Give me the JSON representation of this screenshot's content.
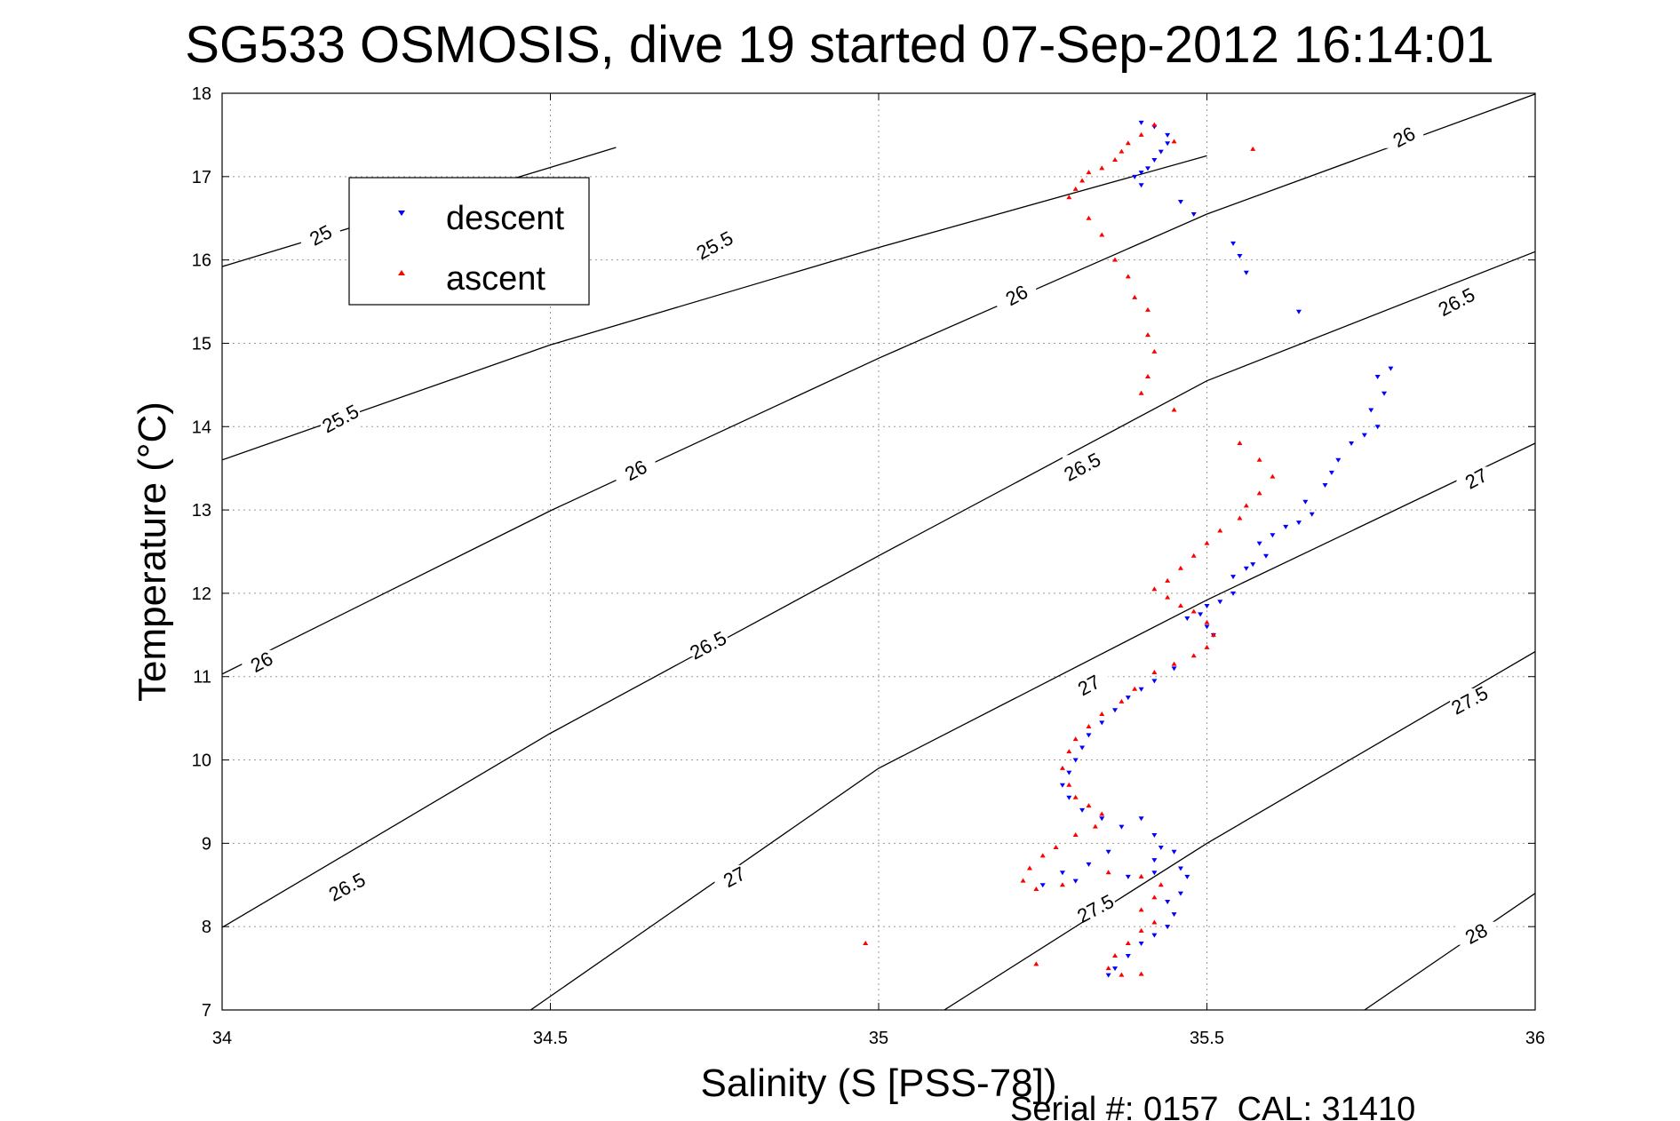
{
  "chart_data": {
    "type": "scatter",
    "title": "SG533 OSMOSIS, dive 19 started 07-Sep-2012 16:14:01",
    "xlabel": "Salinity (S [PSS-78])",
    "ylabel": "Temperature (°C)",
    "xlim": [
      34,
      36
    ],
    "ylim": [
      7,
      18
    ],
    "xticks": [
      "34",
      "34.5",
      "35",
      "35.5",
      "36"
    ],
    "yticks": [
      "7",
      "8",
      "9",
      "10",
      "11",
      "12",
      "13",
      "14",
      "15",
      "16",
      "17",
      "18"
    ],
    "grid": true,
    "legend": {
      "position": "upper-left",
      "entries": [
        "descent",
        "ascent"
      ]
    },
    "footer": "Serial #: 0157  CAL: 31410",
    "colors": {
      "descent": "#0000ff",
      "ascent": "#ff0000",
      "contour": "#000000"
    },
    "contours": [
      {
        "label": "25",
        "points": [
          [
            34.0,
            15.92
          ],
          [
            34.5,
            17.11
          ],
          [
            34.6,
            17.35
          ]
        ],
        "label_at": [
          34.15,
          16.3
        ]
      },
      {
        "label": "25.5",
        "points": [
          [
            34.0,
            13.6
          ],
          [
            34.5,
            14.98
          ],
          [
            35.0,
            16.15
          ],
          [
            35.5,
            17.25
          ],
          [
            35.5,
            17.25
          ]
        ],
        "label_at": [
          34.18,
          14.1
        ],
        "label2": "25.5",
        "label2_at": [
          34.75,
          16.18
        ]
      },
      {
        "label": "26",
        "points": [
          [
            34.0,
            11.03
          ],
          [
            34.5,
            12.99
          ],
          [
            35.0,
            14.82
          ],
          [
            35.5,
            16.55
          ],
          [
            36.0,
            17.99
          ]
        ],
        "label_at": [
          34.06,
          11.18
        ],
        "label2": "26",
        "label2_at": [
          34.63,
          13.48
        ],
        "label3": "26",
        "label3_at": [
          35.21,
          15.58
        ],
        "label4": "26",
        "label4_at": [
          35.8,
          17.48
        ]
      },
      {
        "label": "26.5",
        "points": [
          [
            34.0,
            7.99
          ],
          [
            34.5,
            10.32
          ],
          [
            35.0,
            12.45
          ],
          [
            35.5,
            14.55
          ],
          [
            36.0,
            16.1
          ]
        ],
        "label_at": [
          34.19,
          8.48
        ],
        "label2": "26.5",
        "label2_at": [
          34.74,
          11.38
        ],
        "label3": "26.5",
        "label3_at": [
          35.31,
          13.52
        ],
        "label4": "26.5",
        "label4_at": [
          35.88,
          15.5
        ]
      },
      {
        "label": "27",
        "points": [
          [
            34.47,
            7.0
          ],
          [
            35.0,
            9.9
          ],
          [
            35.5,
            11.92
          ],
          [
            36.0,
            13.8
          ]
        ],
        "label_at": [
          34.78,
          8.6
        ],
        "label2": "27",
        "label2_at": [
          35.32,
          10.9
        ],
        "label3": "27",
        "label3_at": [
          35.91,
          13.38
        ]
      },
      {
        "label": "27.5",
        "points": [
          [
            35.1,
            7.0
          ],
          [
            35.5,
            9.0
          ],
          [
            36.0,
            11.3
          ]
        ],
        "label_at": [
          35.33,
          8.22
        ],
        "label2": "27.5",
        "label2_at": [
          35.9,
          10.72
        ]
      },
      {
        "label": "28",
        "points": [
          [
            35.74,
            7.0
          ],
          [
            36.0,
            8.4
          ]
        ],
        "label_at": [
          35.91,
          7.92
        ]
      }
    ],
    "series": [
      {
        "name": "descent",
        "marker": "triangle-down",
        "points": [
          [
            35.4,
            17.65
          ],
          [
            35.42,
            17.6
          ],
          [
            35.44,
            17.5
          ],
          [
            35.44,
            17.4
          ],
          [
            35.43,
            17.3
          ],
          [
            35.42,
            17.2
          ],
          [
            35.41,
            17.1
          ],
          [
            35.4,
            17.05
          ],
          [
            35.39,
            17.0
          ],
          [
            35.4,
            16.9
          ],
          [
            35.46,
            16.7
          ],
          [
            35.48,
            16.55
          ],
          [
            35.54,
            16.2
          ],
          [
            35.55,
            16.05
          ],
          [
            35.56,
            15.85
          ],
          [
            35.64,
            15.38
          ],
          [
            35.78,
            14.7
          ],
          [
            35.76,
            14.6
          ],
          [
            35.77,
            14.4
          ],
          [
            35.75,
            14.2
          ],
          [
            35.76,
            14.0
          ],
          [
            35.74,
            13.9
          ],
          [
            35.72,
            13.8
          ],
          [
            35.7,
            13.6
          ],
          [
            35.69,
            13.45
          ],
          [
            35.68,
            13.3
          ],
          [
            35.65,
            13.1
          ],
          [
            35.66,
            12.95
          ],
          [
            35.64,
            12.85
          ],
          [
            35.62,
            12.8
          ],
          [
            35.6,
            12.7
          ],
          [
            35.58,
            12.6
          ],
          [
            35.59,
            12.45
          ],
          [
            35.57,
            12.35
          ],
          [
            35.56,
            12.3
          ],
          [
            35.54,
            12.2
          ],
          [
            35.54,
            12.0
          ],
          [
            35.52,
            11.9
          ],
          [
            35.5,
            11.85
          ],
          [
            35.49,
            11.75
          ],
          [
            35.47,
            11.7
          ],
          [
            35.5,
            11.6
          ],
          [
            35.51,
            11.5
          ],
          [
            35.45,
            11.1
          ],
          [
            35.42,
            10.95
          ],
          [
            35.4,
            10.85
          ],
          [
            35.38,
            10.75
          ],
          [
            35.36,
            10.6
          ],
          [
            35.34,
            10.45
          ],
          [
            35.32,
            10.3
          ],
          [
            35.31,
            10.15
          ],
          [
            35.3,
            10.0
          ],
          [
            35.29,
            9.85
          ],
          [
            35.28,
            9.7
          ],
          [
            35.29,
            9.55
          ],
          [
            35.31,
            9.4
          ],
          [
            35.34,
            9.3
          ],
          [
            35.37,
            9.2
          ],
          [
            35.4,
            9.3
          ],
          [
            35.42,
            9.1
          ],
          [
            35.43,
            8.95
          ],
          [
            35.45,
            8.9
          ],
          [
            35.42,
            8.8
          ],
          [
            35.35,
            8.9
          ],
          [
            35.32,
            8.75
          ],
          [
            35.28,
            8.65
          ],
          [
            35.25,
            8.5
          ],
          [
            35.3,
            8.55
          ],
          [
            35.38,
            8.6
          ],
          [
            35.42,
            8.65
          ],
          [
            35.46,
            8.7
          ],
          [
            35.47,
            8.6
          ],
          [
            35.46,
            8.4
          ],
          [
            35.44,
            8.3
          ],
          [
            35.45,
            8.15
          ],
          [
            35.44,
            8.0
          ],
          [
            35.42,
            7.9
          ],
          [
            35.4,
            7.8
          ],
          [
            35.38,
            7.65
          ],
          [
            35.36,
            7.5
          ],
          [
            35.35,
            7.42
          ]
        ]
      },
      {
        "name": "ascent",
        "marker": "triangle-up",
        "points": [
          [
            35.42,
            17.62
          ],
          [
            35.4,
            17.5
          ],
          [
            35.38,
            17.4
          ],
          [
            35.37,
            17.3
          ],
          [
            35.36,
            17.2
          ],
          [
            35.34,
            17.1
          ],
          [
            35.32,
            17.05
          ],
          [
            35.31,
            16.95
          ],
          [
            35.3,
            16.85
          ],
          [
            35.29,
            16.75
          ],
          [
            35.32,
            16.5
          ],
          [
            35.34,
            16.3
          ],
          [
            35.36,
            16.0
          ],
          [
            35.38,
            15.8
          ],
          [
            35.39,
            15.55
          ],
          [
            35.41,
            15.4
          ],
          [
            35.41,
            15.1
          ],
          [
            35.42,
            14.9
          ],
          [
            35.41,
            14.6
          ],
          [
            35.4,
            14.4
          ],
          [
            35.45,
            17.42
          ],
          [
            35.57,
            17.33
          ],
          [
            35.45,
            14.2
          ],
          [
            35.55,
            13.8
          ],
          [
            35.58,
            13.6
          ],
          [
            35.6,
            13.4
          ],
          [
            35.58,
            13.2
          ],
          [
            35.56,
            13.05
          ],
          [
            35.55,
            12.9
          ],
          [
            35.52,
            12.75
          ],
          [
            35.5,
            12.6
          ],
          [
            35.48,
            12.45
          ],
          [
            35.46,
            12.3
          ],
          [
            35.44,
            12.15
          ],
          [
            35.42,
            12.05
          ],
          [
            35.44,
            11.95
          ],
          [
            35.46,
            11.85
          ],
          [
            35.48,
            11.78
          ],
          [
            35.5,
            11.65
          ],
          [
            35.51,
            11.5
          ],
          [
            35.5,
            11.35
          ],
          [
            35.48,
            11.25
          ],
          [
            35.45,
            11.15
          ],
          [
            35.42,
            11.05
          ],
          [
            35.39,
            10.85
          ],
          [
            35.37,
            10.7
          ],
          [
            35.34,
            10.55
          ],
          [
            35.32,
            10.4
          ],
          [
            35.3,
            10.25
          ],
          [
            35.29,
            10.1
          ],
          [
            35.28,
            9.9
          ],
          [
            35.29,
            9.7
          ],
          [
            35.3,
            9.55
          ],
          [
            35.32,
            9.45
          ],
          [
            35.34,
            9.35
          ],
          [
            35.33,
            9.2
          ],
          [
            35.3,
            9.1
          ],
          [
            35.27,
            8.95
          ],
          [
            35.25,
            8.85
          ],
          [
            35.23,
            8.7
          ],
          [
            35.22,
            8.55
          ],
          [
            35.24,
            8.45
          ],
          [
            35.28,
            8.5
          ],
          [
            35.35,
            8.65
          ],
          [
            35.4,
            8.6
          ],
          [
            35.43,
            8.5
          ],
          [
            35.42,
            8.35
          ],
          [
            35.4,
            8.2
          ],
          [
            35.42,
            8.05
          ],
          [
            35.4,
            7.95
          ],
          [
            35.38,
            7.8
          ],
          [
            35.36,
            7.65
          ],
          [
            35.35,
            7.5
          ],
          [
            35.37,
            7.42
          ],
          [
            35.4,
            7.43
          ],
          [
            34.98,
            7.8
          ],
          [
            35.24,
            7.55
          ]
        ]
      }
    ]
  }
}
